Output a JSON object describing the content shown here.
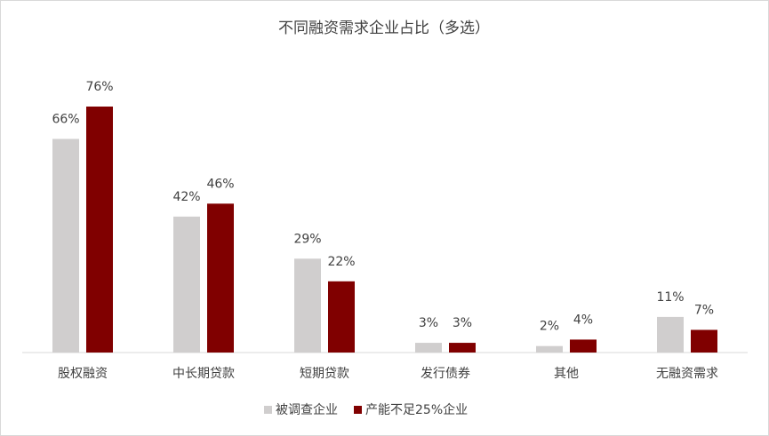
{
  "chart_data": {
    "type": "bar",
    "title": "不同融资需求企业占比（多选）",
    "categories": [
      "股权融资",
      "中长期贷款",
      "短期贷款",
      "发行债券",
      "其他",
      "无融资需求"
    ],
    "series": [
      {
        "name": "被调查企业",
        "color": "#d0cece",
        "values": [
          66,
          42,
          29,
          3,
          2,
          11
        ],
        "value_labels": [
          "66%",
          "42%",
          "29%",
          "3%",
          "2%",
          "11%"
        ]
      },
      {
        "name": "产能不足25%企业",
        "color": "#800000",
        "values": [
          76,
          46,
          22,
          3,
          4,
          7
        ],
        "value_labels": [
          "76%",
          "46%",
          "22%",
          "3%",
          "4%",
          "7%"
        ]
      }
    ],
    "legend": "bottom"
  }
}
